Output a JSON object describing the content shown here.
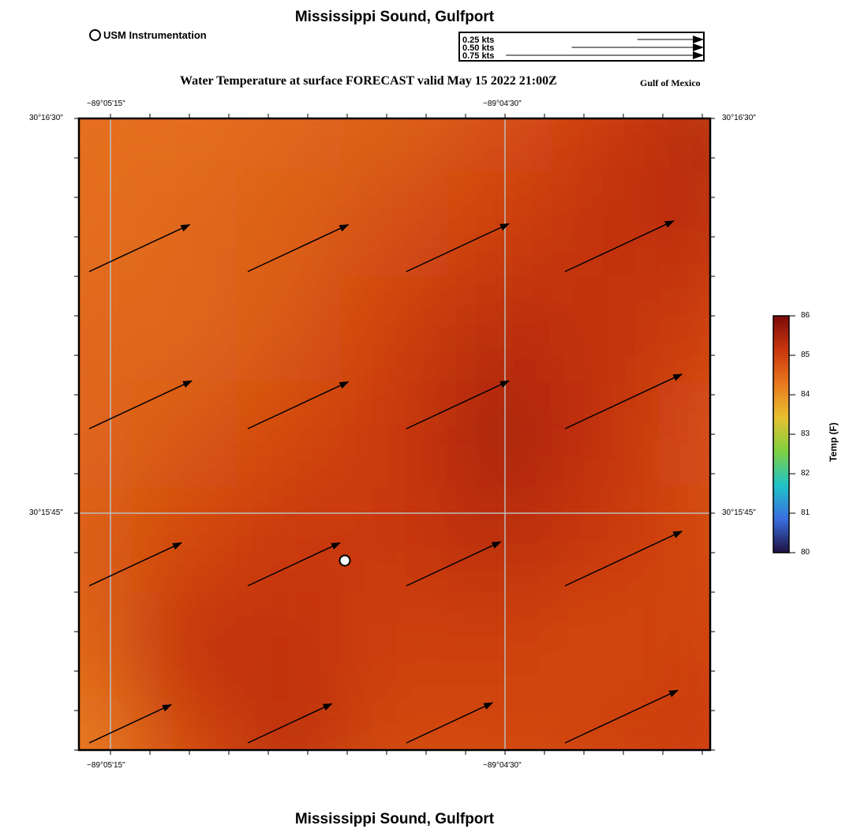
{
  "title_top": "Mississippi Sound, Gulfport",
  "title_bottom": "Mississippi Sound, Gulfport",
  "map_title": "Water Temperature at surface FORECAST valid May 15 2022 21:00Z",
  "region_label": "Gulf of Mexico",
  "station_legend": {
    "label": "USM Instrumentation",
    "icon": "open-circle-icon"
  },
  "vector_key": [
    {
      "label": "0.25 kts",
      "speed": 0.25
    },
    {
      "label": "0.50 kts",
      "speed": 0.5
    },
    {
      "label": "0.75 kts",
      "speed": 0.75
    }
  ],
  "axes": {
    "lon_ticks": [
      "−89°05'15\"",
      "−89°04'30\""
    ],
    "lat_ticks": [
      "30°16'30\"",
      "30°15'45\""
    ]
  },
  "colorbar": {
    "label": "Temp (F)",
    "range": [
      80,
      86
    ],
    "ticks": [
      "86",
      "85",
      "84",
      "83",
      "82",
      "81",
      "80"
    ],
    "colors": [
      "#7a0a0a",
      "#c8360c",
      "#e8781e",
      "#e8c030",
      "#7fd040",
      "#20c4c8",
      "#3a6ee0",
      "#1e1040"
    ]
  },
  "chart_data": {
    "type": "heatmap",
    "variable": "Water Temperature at surface",
    "units": "F",
    "value_range": [
      84.2,
      85.6
    ],
    "grid_rows_north_to_south": [
      [
        84.4,
        84.4,
        84.5,
        84.6,
        84.8,
        85.1,
        85.4
      ],
      [
        84.4,
        84.5,
        84.6,
        84.8,
        85.0,
        85.2,
        85.3
      ],
      [
        84.5,
        84.5,
        84.7,
        85.0,
        85.3,
        85.2,
        85.0
      ],
      [
        84.5,
        84.7,
        84.9,
        85.1,
        85.5,
        85.2,
        84.8
      ],
      [
        84.6,
        84.9,
        85.1,
        85.1,
        85.3,
        85.1,
        84.9
      ],
      [
        84.5,
        85.2,
        85.2,
        85.0,
        85.0,
        84.9,
        85.0
      ],
      [
        84.2,
        84.9,
        85.3,
        84.9,
        84.9,
        85.0,
        85.1
      ]
    ],
    "current_vectors_rows_north_to_south": [
      [
        0.49,
        0.49,
        0.5,
        0.53
      ],
      [
        0.5,
        0.49,
        0.5,
        0.57
      ],
      [
        0.45,
        0.45,
        0.46,
        0.57
      ],
      [
        0.4,
        0.41,
        0.42,
        0.55
      ]
    ],
    "current_direction_deg_toward": 65
  },
  "station": {
    "marker": "open-circle-icon"
  }
}
